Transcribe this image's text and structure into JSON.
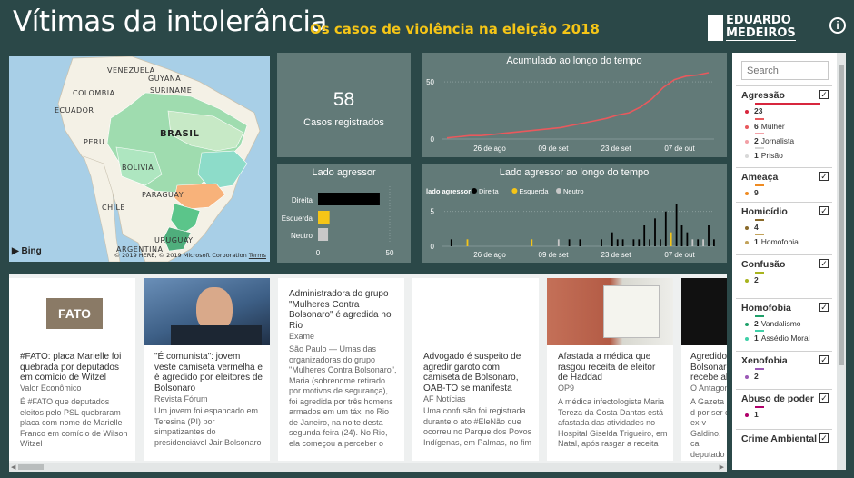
{
  "header": {
    "title": "Vítimas da intolerância",
    "subtitle": "Os casos de violência na eleição 2018",
    "logo_line1": "EDUARDO",
    "logo_line2": "MEDEIROS",
    "info_icon": "i"
  },
  "map": {
    "labels": [
      "VENEZUELA",
      "GUYANA",
      "SURINAME",
      "COLOMBIA",
      "ECUADOR",
      "PERU",
      "BRASIL",
      "BOLIVIA",
      "PARAGUAY",
      "CHILE",
      "URUGUAY",
      "ARGENTINA"
    ],
    "bing": "Bing",
    "copyright": "© 2019 HERE, © 2019 Microsoft Corporation",
    "terms": "Terms"
  },
  "summary_card": {
    "value": "58",
    "label": "Casos registrados"
  },
  "accumulated_chart": {
    "title": "Acumulado ao longo do tempo",
    "chart_data": {
      "type": "line",
      "x_ticks": [
        "26 de ago",
        "09 de set",
        "23 de set",
        "07 de out"
      ],
      "y_ticks": [
        "0",
        "50"
      ],
      "ylim": [
        0,
        58
      ],
      "series": [
        {
          "values": [
            1,
            2,
            3,
            3,
            4,
            5,
            6,
            7,
            8,
            9,
            10,
            12,
            14,
            16,
            18,
            21,
            23,
            28,
            35,
            45,
            52,
            55,
            56,
            58
          ]
        }
      ],
      "color": "#e8595d"
    }
  },
  "aggressor_chart": {
    "title": "Lado agressor",
    "chart_data": {
      "type": "bar",
      "categories": [
        "Direita",
        "Esquerda",
        "Neutro"
      ],
      "values": [
        43,
        8,
        7
      ],
      "x_ticks": [
        "0",
        "50"
      ],
      "xlim": [
        0,
        50
      ],
      "colors": [
        "#000000",
        "#f5c517",
        "#c8c8c8"
      ]
    }
  },
  "aggressor_time_chart": {
    "title": "Lado agressor ao longo do tempo",
    "legend_title": "lado agressor",
    "legend": [
      {
        "name": "Direita",
        "color": "#000000"
      },
      {
        "name": "Esquerda",
        "color": "#f5c517"
      },
      {
        "name": "Neutro",
        "color": "#c8c8c8"
      }
    ],
    "chart_data": {
      "type": "bar",
      "x_ticks": [
        "26 de ago",
        "09 de set",
        "23 de set",
        "07 de out"
      ],
      "y_ticks": [
        "0",
        "5"
      ],
      "ylim": [
        0,
        6
      ],
      "bars": [
        {
          "d": 1,
          "s": "Direita",
          "v": 1
        },
        {
          "d": 4,
          "s": "Esquerda",
          "v": 1
        },
        {
          "d": 16,
          "s": "Esquerda",
          "v": 1
        },
        {
          "d": 21,
          "s": "Neutro",
          "v": 1
        },
        {
          "d": 23,
          "s": "Direita",
          "v": 1
        },
        {
          "d": 25,
          "s": "Direita",
          "v": 1
        },
        {
          "d": 29,
          "s": "Direita",
          "v": 1
        },
        {
          "d": 31,
          "s": "Direita",
          "v": 2
        },
        {
          "d": 32,
          "s": "Direita",
          "v": 1
        },
        {
          "d": 33,
          "s": "Direita",
          "v": 1
        },
        {
          "d": 35,
          "s": "Direita",
          "v": 1
        },
        {
          "d": 36,
          "s": "Direita",
          "v": 1
        },
        {
          "d": 37,
          "s": "Direita",
          "v": 3
        },
        {
          "d": 38,
          "s": "Direita",
          "v": 1
        },
        {
          "d": 39,
          "s": "Direita",
          "v": 4
        },
        {
          "d": 40,
          "s": "Direita",
          "v": 1
        },
        {
          "d": 41,
          "s": "Direita",
          "v": 5
        },
        {
          "d": 42,
          "s": "Esquerda",
          "v": 2
        },
        {
          "d": 43,
          "s": "Direita",
          "v": 6
        },
        {
          "d": 44,
          "s": "Direita",
          "v": 3
        },
        {
          "d": 45,
          "s": "Direita",
          "v": 2
        },
        {
          "d": 46,
          "s": "Neutro",
          "v": 1
        },
        {
          "d": 47,
          "s": "Direita",
          "v": 1
        },
        {
          "d": 48,
          "s": "Neutro",
          "v": 1
        },
        {
          "d": 49,
          "s": "Direita",
          "v": 3
        },
        {
          "d": 50,
          "s": "Direita",
          "v": 1
        }
      ]
    }
  },
  "news": [
    {
      "headline": "#FATO: placa Marielle foi quebrada por deputados em comício de Witzel",
      "source": "Valor Econômico",
      "body": "É #FATO que deputados eleitos pelo PSL quebraram placa com nome de Marielle Franco em comício de Wilson Witzel",
      "image_text": "FATO"
    },
    {
      "headline": "\"É comunista\": jovem veste camiseta vermelha e é agredido por eleitores de Bolsonaro",
      "source": "Revista Fórum",
      "body": "Um jovem foi espancado em Teresina (PI) por simpatizantes do presidenciável Jair Bolsonaro"
    },
    {
      "headline": "Administradora do grupo \"Mulheres Contra Bolsonaro\" é agredida no Rio",
      "source": "Exame",
      "body": "São Paulo — Umas das organizadoras do grupo \"Mulheres Contra Bolsonaro\", Maria (sobrenome retirado por motivos de segurança), foi agredida por três homens armados em um táxi no Rio de Janeiro, na noite desta segunda-feira (24). No Rio, ela começou a perceber o"
    },
    {
      "headline": "Advogado é suspeito de agredir garoto com camiseta de Bolsonaro, OAB-TO se manifesta",
      "source": "AF Notícias",
      "body": "Uma confusão foi registrada durante o ato #EleNão que ocorreu no Parque dos Povos Indígenas, em Palmas, no fim"
    },
    {
      "headline": "Afastada a médica que rasgou receita de eleitor de Haddad",
      "source": "OP9",
      "body": "A médica infectologista Maria Tereza da Costa Dantas está afastada das atividades no Hospital Giselda Trigueiro, em Natal, após rasgar a receita"
    },
    {
      "headline": "Agredido Bolsonaro recebe alt",
      "source": "O Antagon",
      "body": "A Gazeta d por ser o ex-v Galdino, ca deputado e recebeu alt"
    }
  ],
  "filters": {
    "search_placeholder": "Search",
    "check": "✓",
    "categories": [
      {
        "name": "Agressão",
        "color": "#d7263d",
        "items": [
          {
            "count": "23",
            "label": "",
            "color": "#d7263d"
          },
          {
            "count": "6",
            "label": "Mulher",
            "color": "#e8595d"
          },
          {
            "count": "2",
            "label": "Jornalista",
            "color": "#f2a0a6"
          },
          {
            "count": "1",
            "label": "Prisão",
            "color": "#d8d8d8"
          }
        ]
      },
      {
        "name": "Ameaça",
        "color": "#ef8b22",
        "items": [
          {
            "count": "9",
            "label": "",
            "color": "#ef8b22"
          }
        ]
      },
      {
        "name": "Homicídio",
        "color": "#8a6a2a",
        "items": [
          {
            "count": "4",
            "label": "",
            "color": "#8a6a2a"
          },
          {
            "count": "1",
            "label": "Homofobia",
            "color": "#c2a25a"
          }
        ]
      },
      {
        "name": "Confusão",
        "color": "#a8b41e",
        "items": [
          {
            "count": "2",
            "label": "",
            "color": "#a8b41e"
          }
        ]
      },
      {
        "name": "Homofobia",
        "color": "#1fa06a",
        "items": [
          {
            "count": "2",
            "label": "Vandalismo",
            "color": "#1fa06a"
          },
          {
            "count": "1",
            "label": "Assédio Moral",
            "color": "#3fd0a8"
          }
        ]
      },
      {
        "name": "Xenofobia",
        "color": "#9b59b6",
        "items": [
          {
            "count": "2",
            "label": "",
            "color": "#9b59b6"
          }
        ]
      },
      {
        "name": "Abuso de poder",
        "color": "#b0006a",
        "items": [
          {
            "count": "1",
            "label": "",
            "color": "#b0006a"
          }
        ]
      },
      {
        "name": "Crime Ambiental",
        "color": "#2a7a3a",
        "items": []
      }
    ]
  },
  "scroll": {
    "left_arrow": "◀",
    "right_arrow": "▶"
  }
}
